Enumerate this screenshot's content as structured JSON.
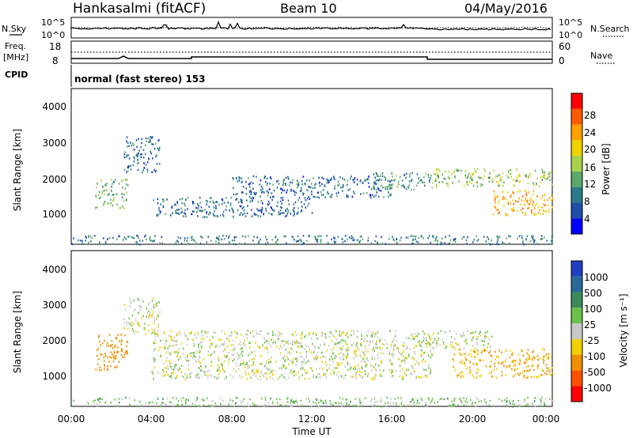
{
  "header": {
    "title": "Hankasalmi (fitACF)",
    "beam": "Beam 10",
    "date": "04/May/2016"
  },
  "noise_panel": {
    "left_label": "N.Sky",
    "right_label": "N.Search",
    "left_ticks": [
      "10^5",
      "10^0"
    ],
    "right_ticks": [
      "10^5",
      "10^0"
    ]
  },
  "freq_panel": {
    "left_label_1": "Freq.",
    "left_label_2": "[MHz]",
    "left_ticks": [
      "18",
      "8"
    ],
    "right_label": "Nave",
    "right_ticks": [
      "60",
      "0"
    ],
    "cpid_label": "CPID",
    "mode": "normal (fast stereo) 153"
  },
  "power_panel": {
    "ylabel": "Slant Range [km]",
    "yticks": [
      "4000",
      "3000",
      "2000",
      "1000"
    ],
    "cbar_label": "Power [dB]",
    "cbar_ticks": [
      "28",
      "24",
      "20",
      "16",
      "12",
      "8",
      "4"
    ],
    "cbar_colors": [
      "#ff0000",
      "#ff5a00",
      "#ffa000",
      "#f0d200",
      "#a8d24a",
      "#5aa86a",
      "#2a7a8a",
      "#1e4ea8",
      "#0000ff"
    ]
  },
  "velocity_panel": {
    "ylabel": "Slant Range [km]",
    "yticks": [
      "4000",
      "3000",
      "2000",
      "1000"
    ],
    "cbar_label": "Velocity [m s⁻¹]",
    "cbar_ticks": [
      "1000",
      "500",
      "100",
      "25",
      "-25",
      "-100",
      "-500",
      "-1000"
    ],
    "cbar_colors": [
      "#2040c0",
      "#2a6a9a",
      "#3a8a5a",
      "#6ac24a",
      "#c8c8c8",
      "#f0d000",
      "#f09000",
      "#ff5000",
      "#ff0000"
    ]
  },
  "x_axis": {
    "label": "Time UT",
    "ticks": [
      "00:00",
      "04:00",
      "08:00",
      "12:00",
      "16:00",
      "20:00",
      "00:00"
    ]
  },
  "chart_data": [
    {
      "type": "heatmap",
      "panel": "power",
      "xlabel": "Time UT",
      "ylabel": "Slant Range [km]",
      "ylim": [
        180,
        4500
      ],
      "xlim_hours": [
        0,
        24
      ],
      "colorbar_label": "Power [dB]",
      "colorbar_range": [
        0,
        30
      ],
      "regions": [
        {
          "t": [
            1.2,
            2.8
          ],
          "r": [
            1200,
            2000
          ],
          "value": 12
        },
        {
          "t": [
            2.6,
            4.4
          ],
          "r": [
            2200,
            3200
          ],
          "value": 6
        },
        {
          "t": [
            4.0,
            12.0
          ],
          "r": [
            950,
            1500
          ],
          "value": 6
        },
        {
          "t": [
            8.0,
            16.0
          ],
          "r": [
            1500,
            2100
          ],
          "value": 6
        },
        {
          "t": [
            15.0,
            18.0
          ],
          "r": [
            1700,
            2200
          ],
          "value": 10
        },
        {
          "t": [
            18.0,
            24.0
          ],
          "r": [
            1800,
            2300
          ],
          "value": 14
        },
        {
          "t": [
            21.0,
            24.0
          ],
          "r": [
            1000,
            1700
          ],
          "value": 22
        },
        {
          "t": [
            0,
            24
          ],
          "r": [
            200,
            450
          ],
          "value": 8
        }
      ]
    },
    {
      "type": "heatmap",
      "panel": "velocity",
      "xlabel": "Time UT",
      "ylabel": "Slant Range [km]",
      "ylim": [
        180,
        4500
      ],
      "xlim_hours": [
        0,
        24
      ],
      "colorbar_label": "Velocity [m s⁻¹]",
      "colorbar_range": [
        -1000,
        1000
      ],
      "regions": [
        {
          "t": [
            1.2,
            2.8
          ],
          "r": [
            1200,
            2200
          ],
          "value": -300
        },
        {
          "t": [
            2.6,
            4.4
          ],
          "r": [
            2200,
            3200
          ],
          "value": 0
        },
        {
          "t": [
            4.0,
            18.0
          ],
          "r": [
            950,
            2300
          ],
          "value": 0
        },
        {
          "t": [
            18.0,
            21.0
          ],
          "r": [
            1800,
            2300
          ],
          "value": 0
        },
        {
          "t": [
            19.0,
            24.0
          ],
          "r": [
            1000,
            1800
          ],
          "value": -100
        },
        {
          "t": [
            0,
            24
          ],
          "r": [
            200,
            450
          ],
          "value": 50
        }
      ]
    }
  ]
}
